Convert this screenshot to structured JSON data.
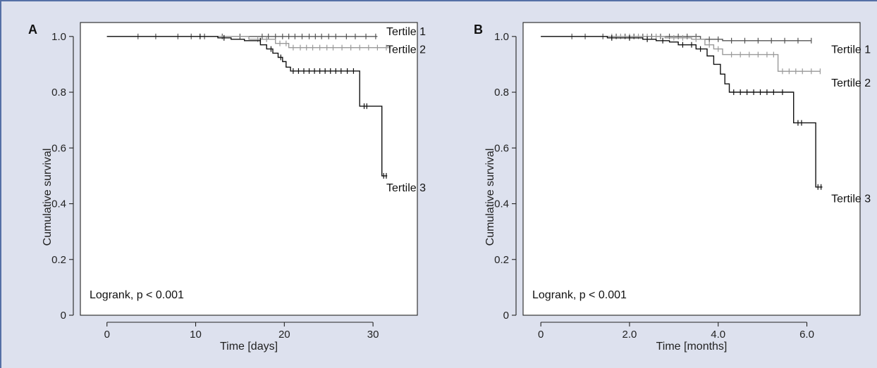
{
  "chart_data": [
    {
      "type": "line",
      "panel_label": "A",
      "xlabel": "Time [days]",
      "ylabel": "Cumulative survival",
      "xlim": [
        -3,
        35
      ],
      "ylim": [
        0,
        1.05
      ],
      "x_ticks": [
        0,
        10,
        20,
        30
      ],
      "x_tick_labels": [
        "0",
        "10",
        "20",
        "30"
      ],
      "y_ticks": [
        0,
        0.2,
        0.4,
        0.6,
        0.8,
        1.0
      ],
      "y_tick_labels": [
        "0",
        "0.2",
        "0.4",
        "0.6",
        "0.8",
        "1.0"
      ],
      "annotation": "Logrank, p < 0.001",
      "grid": false,
      "series": [
        {
          "name": "Tertile 1",
          "color": "#555555",
          "label_at": [
            31.5,
            1.02
          ],
          "steps": [
            [
              0,
              1.0
            ],
            [
              30.5,
              1.0
            ]
          ],
          "censored": [
            [
              3.5,
              1.0
            ],
            [
              5.5,
              1.0
            ],
            [
              8,
              1.0
            ],
            [
              9.5,
              1.0
            ],
            [
              11,
              1.0
            ],
            [
              13,
              1.0
            ],
            [
              15,
              1.0
            ],
            [
              17.5,
              1.0
            ],
            [
              18.2,
              1.0
            ],
            [
              19,
              1.0
            ],
            [
              19.8,
              1.0
            ],
            [
              20.5,
              1.0
            ],
            [
              21.2,
              1.0
            ],
            [
              22,
              1.0
            ],
            [
              22.8,
              1.0
            ],
            [
              23.5,
              1.0
            ],
            [
              24.2,
              1.0
            ],
            [
              25,
              1.0
            ],
            [
              25.8,
              1.0
            ],
            [
              27,
              1.0
            ],
            [
              28,
              1.0
            ],
            [
              29.2,
              1.0
            ],
            [
              30.3,
              1.0
            ]
          ]
        },
        {
          "name": "Tertile 2",
          "color": "#9a9a9a",
          "label_at": [
            31.5,
            0.955
          ],
          "steps": [
            [
              0,
              1.0
            ],
            [
              16,
              1.0
            ],
            [
              16,
              0.99
            ],
            [
              19,
              0.99
            ],
            [
              19,
              0.975
            ],
            [
              20.5,
              0.975
            ],
            [
              20.5,
              0.96
            ],
            [
              32,
              0.96
            ]
          ],
          "censored": [
            [
              17,
              0.99
            ],
            [
              18,
              0.99
            ],
            [
              19.5,
              0.975
            ],
            [
              20.2,
              0.975
            ],
            [
              21,
              0.96
            ],
            [
              21.8,
              0.96
            ],
            [
              22.5,
              0.96
            ],
            [
              23.2,
              0.96
            ],
            [
              24,
              0.96
            ],
            [
              24.8,
              0.96
            ],
            [
              25.5,
              0.96
            ],
            [
              26.5,
              0.96
            ],
            [
              27.5,
              0.96
            ],
            [
              28.5,
              0.96
            ],
            [
              29.5,
              0.96
            ],
            [
              30.5,
              0.96
            ],
            [
              31.5,
              0.96
            ]
          ]
        },
        {
          "name": "Tertile 3",
          "color": "#111111",
          "label_at": [
            31.5,
            0.46
          ],
          "steps": [
            [
              0,
              1.0
            ],
            [
              12.5,
              1.0
            ],
            [
              12.5,
              0.995
            ],
            [
              14,
              0.995
            ],
            [
              14,
              0.99
            ],
            [
              15.5,
              0.99
            ],
            [
              15.5,
              0.985
            ],
            [
              17.3,
              0.985
            ],
            [
              17.3,
              0.97
            ],
            [
              18,
              0.97
            ],
            [
              18,
              0.955
            ],
            [
              18.7,
              0.955
            ],
            [
              18.7,
              0.94
            ],
            [
              19.3,
              0.94
            ],
            [
              19.3,
              0.925
            ],
            [
              19.8,
              0.925
            ],
            [
              19.8,
              0.91
            ],
            [
              20.2,
              0.91
            ],
            [
              20.2,
              0.89
            ],
            [
              20.7,
              0.89
            ],
            [
              20.7,
              0.876
            ],
            [
              28.5,
              0.876
            ],
            [
              28.5,
              0.75
            ],
            [
              31,
              0.75
            ],
            [
              31,
              0.5
            ],
            [
              31.6,
              0.5
            ]
          ],
          "censored": [
            [
              10.5,
              1.0
            ],
            [
              13.2,
              0.995
            ],
            [
              17.3,
              0.985
            ],
            [
              18.5,
              0.955
            ],
            [
              19.6,
              0.925
            ],
            [
              21,
              0.876
            ],
            [
              21.6,
              0.876
            ],
            [
              22.2,
              0.876
            ],
            [
              22.8,
              0.876
            ],
            [
              23.4,
              0.876
            ],
            [
              24,
              0.876
            ],
            [
              24.6,
              0.876
            ],
            [
              25.2,
              0.876
            ],
            [
              25.8,
              0.876
            ],
            [
              26.4,
              0.876
            ],
            [
              27.1,
              0.876
            ],
            [
              27.8,
              0.876
            ],
            [
              29,
              0.75
            ],
            [
              29.3,
              0.75
            ],
            [
              31.2,
              0.5
            ],
            [
              31.5,
              0.5
            ]
          ]
        }
      ]
    },
    {
      "type": "line",
      "panel_label": "B",
      "xlabel": "Time [months]",
      "ylabel": "Cumulative survival",
      "xlim": [
        -0.4,
        7.2
      ],
      "ylim": [
        0,
        1.05
      ],
      "x_ticks": [
        0,
        2,
        4,
        6
      ],
      "x_tick_labels": [
        "0",
        "2.0",
        "4.0",
        "6.0"
      ],
      "y_ticks": [
        0,
        0.2,
        0.4,
        0.6,
        0.8,
        1.0
      ],
      "y_tick_labels": [
        "0",
        "0.2",
        "0.4",
        "0.6",
        "0.8",
        "1.0"
      ],
      "annotation": "Logrank, p < 0.001",
      "grid": false,
      "series": [
        {
          "name": "Tertile 1",
          "color": "#555555",
          "label_at": [
            6.55,
            0.955
          ],
          "steps": [
            [
              0,
              1.0
            ],
            [
              3.6,
              1.0
            ],
            [
              3.6,
              0.99
            ],
            [
              4.1,
              0.99
            ],
            [
              4.1,
              0.985
            ],
            [
              6.1,
              0.985
            ]
          ],
          "censored": [
            [
              0.7,
              1.0
            ],
            [
              1.0,
              1.0
            ],
            [
              1.4,
              1.0
            ],
            [
              1.7,
              1.0
            ],
            [
              1.9,
              1.0
            ],
            [
              2.1,
              1.0
            ],
            [
              2.3,
              1.0
            ],
            [
              2.5,
              1.0
            ],
            [
              2.7,
              1.0
            ],
            [
              2.9,
              1.0
            ],
            [
              3.1,
              1.0
            ],
            [
              3.3,
              1.0
            ],
            [
              3.5,
              1.0
            ],
            [
              3.8,
              0.99
            ],
            [
              4.0,
              0.99
            ],
            [
              4.3,
              0.985
            ],
            [
              4.6,
              0.985
            ],
            [
              4.9,
              0.985
            ],
            [
              5.2,
              0.985
            ],
            [
              5.5,
              0.985
            ],
            [
              5.8,
              0.985
            ],
            [
              6.1,
              0.985
            ]
          ]
        },
        {
          "name": "Tertile 2",
          "color": "#9a9a9a",
          "label_at": [
            6.55,
            0.835
          ],
          "steps": [
            [
              0,
              1.0
            ],
            [
              2.8,
              1.0
            ],
            [
              2.8,
              0.995
            ],
            [
              3.4,
              0.995
            ],
            [
              3.4,
              0.99
            ],
            [
              3.7,
              0.99
            ],
            [
              3.7,
              0.97
            ],
            [
              3.9,
              0.97
            ],
            [
              3.9,
              0.955
            ],
            [
              4.1,
              0.955
            ],
            [
              4.1,
              0.935
            ],
            [
              5.35,
              0.935
            ],
            [
              5.35,
              0.875
            ],
            [
              6.3,
              0.875
            ]
          ],
          "censored": [
            [
              1.6,
              1.0
            ],
            [
              1.8,
              1.0
            ],
            [
              2.0,
              1.0
            ],
            [
              2.2,
              1.0
            ],
            [
              2.4,
              1.0
            ],
            [
              2.6,
              1.0
            ],
            [
              3.0,
              0.995
            ],
            [
              3.2,
              0.995
            ],
            [
              3.5,
              0.99
            ],
            [
              3.8,
              0.97
            ],
            [
              4.0,
              0.955
            ],
            [
              4.3,
              0.935
            ],
            [
              4.5,
              0.935
            ],
            [
              4.7,
              0.935
            ],
            [
              4.9,
              0.935
            ],
            [
              5.1,
              0.935
            ],
            [
              5.25,
              0.935
            ],
            [
              5.45,
              0.875
            ],
            [
              5.6,
              0.875
            ],
            [
              5.75,
              0.875
            ],
            [
              5.9,
              0.875
            ],
            [
              6.1,
              0.875
            ],
            [
              6.3,
              0.875
            ]
          ]
        },
        {
          "name": "Tertile 3",
          "color": "#111111",
          "label_at": [
            6.55,
            0.42
          ],
          "steps": [
            [
              0,
              1.0
            ],
            [
              1.5,
              1.0
            ],
            [
              1.5,
              0.995
            ],
            [
              2.3,
              0.995
            ],
            [
              2.3,
              0.99
            ],
            [
              2.6,
              0.99
            ],
            [
              2.6,
              0.985
            ],
            [
              2.9,
              0.985
            ],
            [
              2.9,
              0.98
            ],
            [
              3.1,
              0.98
            ],
            [
              3.1,
              0.97
            ],
            [
              3.5,
              0.97
            ],
            [
              3.5,
              0.955
            ],
            [
              3.75,
              0.955
            ],
            [
              3.75,
              0.93
            ],
            [
              3.9,
              0.93
            ],
            [
              3.9,
              0.9
            ],
            [
              4.05,
              0.9
            ],
            [
              4.05,
              0.865
            ],
            [
              4.15,
              0.865
            ],
            [
              4.15,
              0.83
            ],
            [
              4.25,
              0.83
            ],
            [
              4.25,
              0.8
            ],
            [
              5.7,
              0.8
            ],
            [
              5.7,
              0.69
            ],
            [
              6.2,
              0.69
            ],
            [
              6.2,
              0.46
            ],
            [
              6.35,
              0.46
            ]
          ],
          "censored": [
            [
              1.6,
              0.995
            ],
            [
              2.0,
              0.995
            ],
            [
              2.4,
              0.99
            ],
            [
              2.75,
              0.985
            ],
            [
              3.2,
              0.97
            ],
            [
              3.4,
              0.97
            ],
            [
              3.6,
              0.955
            ],
            [
              4.35,
              0.8
            ],
            [
              4.5,
              0.8
            ],
            [
              4.65,
              0.8
            ],
            [
              4.8,
              0.8
            ],
            [
              4.95,
              0.8
            ],
            [
              5.1,
              0.8
            ],
            [
              5.25,
              0.8
            ],
            [
              5.45,
              0.8
            ],
            [
              5.8,
              0.69
            ],
            [
              5.88,
              0.69
            ],
            [
              6.25,
              0.46
            ],
            [
              6.32,
              0.46
            ]
          ]
        }
      ]
    }
  ]
}
